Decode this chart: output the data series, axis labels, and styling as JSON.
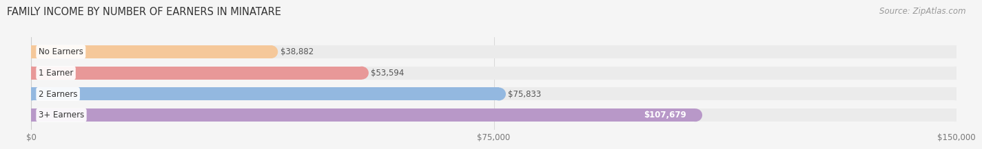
{
  "title": "FAMILY INCOME BY NUMBER OF EARNERS IN MINATARE",
  "source": "Source: ZipAtlas.com",
  "categories": [
    "No Earners",
    "1 Earner",
    "2 Earners",
    "3+ Earners"
  ],
  "values": [
    38882,
    53594,
    75833,
    107679
  ],
  "bar_colors": [
    "#f5c89a",
    "#e89898",
    "#93b8e0",
    "#b898c8"
  ],
  "track_color": "#ebebeb",
  "background_color": "#f5f5f5",
  "xlim": [
    0,
    150000
  ],
  "xticks": [
    0,
    75000,
    150000
  ],
  "xtick_labels": [
    "$0",
    "$75,000",
    "$150,000"
  ],
  "value_labels": [
    "$38,882",
    "$53,594",
    "$75,833",
    "$107,679"
  ],
  "value_label_color_last": "#ffffff",
  "bar_height": 0.62,
  "title_fontsize": 10.5,
  "source_fontsize": 8.5,
  "label_fontsize": 8.5,
  "tick_fontsize": 8.5
}
